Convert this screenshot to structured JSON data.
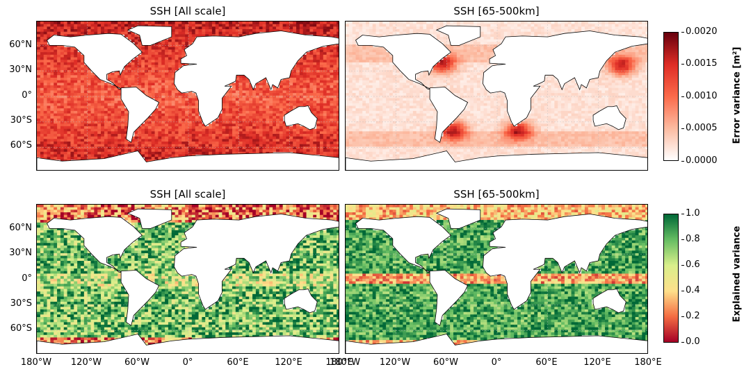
{
  "chart_data": [
    {
      "type": "heatmap",
      "title": "SSH [All scale]",
      "row": "top",
      "col": "left",
      "colormap": "Reds",
      "vmin": 0,
      "vmax": 0.002,
      "base_level": 0.55,
      "zonal": [
        [
          60,
          0.7
        ],
        [
          0,
          0.55
        ],
        [
          -30,
          0.65
        ],
        [
          -60,
          0.8
        ]
      ]
    },
    {
      "type": "heatmap",
      "title": "SSH [65-500km]",
      "row": "top",
      "col": "right",
      "colormap": "Reds",
      "vmin": 0,
      "vmax": 0.002,
      "base_level": 0.08,
      "hotspots": [
        "Gulf Stream",
        "Kuroshio",
        "Agulhas",
        "Brazil-Malvinas"
      ]
    },
    {
      "type": "heatmap",
      "title": "SSH [All scale]",
      "row": "bottom",
      "col": "left",
      "colormap": "RdYlGn",
      "vmin": 0,
      "vmax": 1.0,
      "base_level": 0.75
    },
    {
      "type": "heatmap",
      "title": "SSH [65-500km]",
      "row": "bottom",
      "col": "right",
      "colormap": "RdYlGn",
      "vmin": 0,
      "vmax": 1.0,
      "base_level": 0.82,
      "equatorial_band": 0.2
    }
  ],
  "axes": {
    "lat_ticks": [
      "60°N",
      "30°N",
      "0°",
      "30°S",
      "60°S"
    ],
    "lon_ticks_left": [
      "180°W",
      "120°W",
      "60°W",
      "0°",
      "60°E",
      "120°E",
      "180°E"
    ],
    "lon_ticks_right": [
      "180°W",
      "120°W",
      "60°W",
      "0°",
      "60°E",
      "120°E",
      "180°E"
    ]
  },
  "colorbar_top": {
    "label": "Error variance [m²]",
    "ticks": [
      "0.0020",
      "0.0015",
      "0.0010",
      "0.0005",
      "0.0000"
    ],
    "colors": [
      "#ffffff",
      "#fcbba1",
      "#fb6a4a",
      "#de2d26",
      "#67000d"
    ]
  },
  "colorbar_bottom": {
    "label": "Explained variance",
    "ticks": [
      "1.0",
      "0.8",
      "0.6",
      "0.4",
      "0.2",
      "0.0"
    ],
    "colors": [
      "#a50026",
      "#f46d43",
      "#fee08b",
      "#d9ef8b",
      "#66bd63",
      "#006837"
    ]
  }
}
